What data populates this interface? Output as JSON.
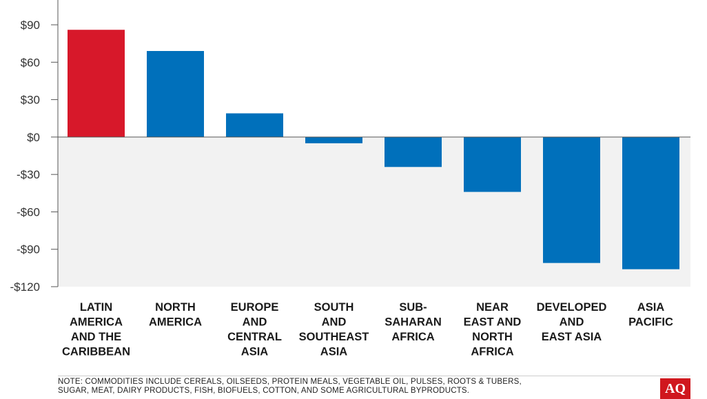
{
  "chart_data": {
    "type": "bar",
    "categories": [
      "LATIN\nAMERICA\nAND THE\nCARIBBEAN",
      "NORTH\nAMERICA",
      "EUROPE\nAND\nCENTRAL\nASIA",
      "SOUTH\nAND\nSOUTHEAST\nASIA",
      "SUB-\nSAHARAN\nAFRICA",
      "NEAR\nEAST AND\nNORTH\nAFRICA",
      "DEVELOPED\nAND\nEAST ASIA",
      "ASIA\nPACIFIC"
    ],
    "values": [
      86,
      69,
      19,
      -5,
      -24,
      -44,
      -101,
      -106
    ],
    "bar_colors": [
      "#d7182a",
      "#0070bb",
      "#0070bb",
      "#0070bb",
      "#0070bb",
      "#0070bb",
      "#0070bb",
      "#0070bb"
    ],
    "yticks": [
      90,
      60,
      30,
      0,
      -30,
      -60,
      -90,
      -120
    ],
    "ytick_labels": [
      "$90",
      "$60",
      "$30",
      "$0",
      "-$30",
      "-$60",
      "-$90",
      "-$120"
    ],
    "ylim": [
      -120,
      90
    ],
    "negative_region_fill": "#f2f2f2",
    "grid": false
  },
  "footer": {
    "note_line1": "NOTE: COMMODITIES INCLUDE CEREALS, OILSEEDS, PROTEIN MEALS, VEGETABLE OIL, PULSES, ROOTS & TUBERS,",
    "note_line2": "SUGAR, MEAT, DAIRY PRODUCTS, FISH, BIOFUELS, COTTON, AND SOME AGRICULTURAL BYPRODUCTS.",
    "logo_text": "AQ",
    "logo_color": "#d0171e"
  }
}
